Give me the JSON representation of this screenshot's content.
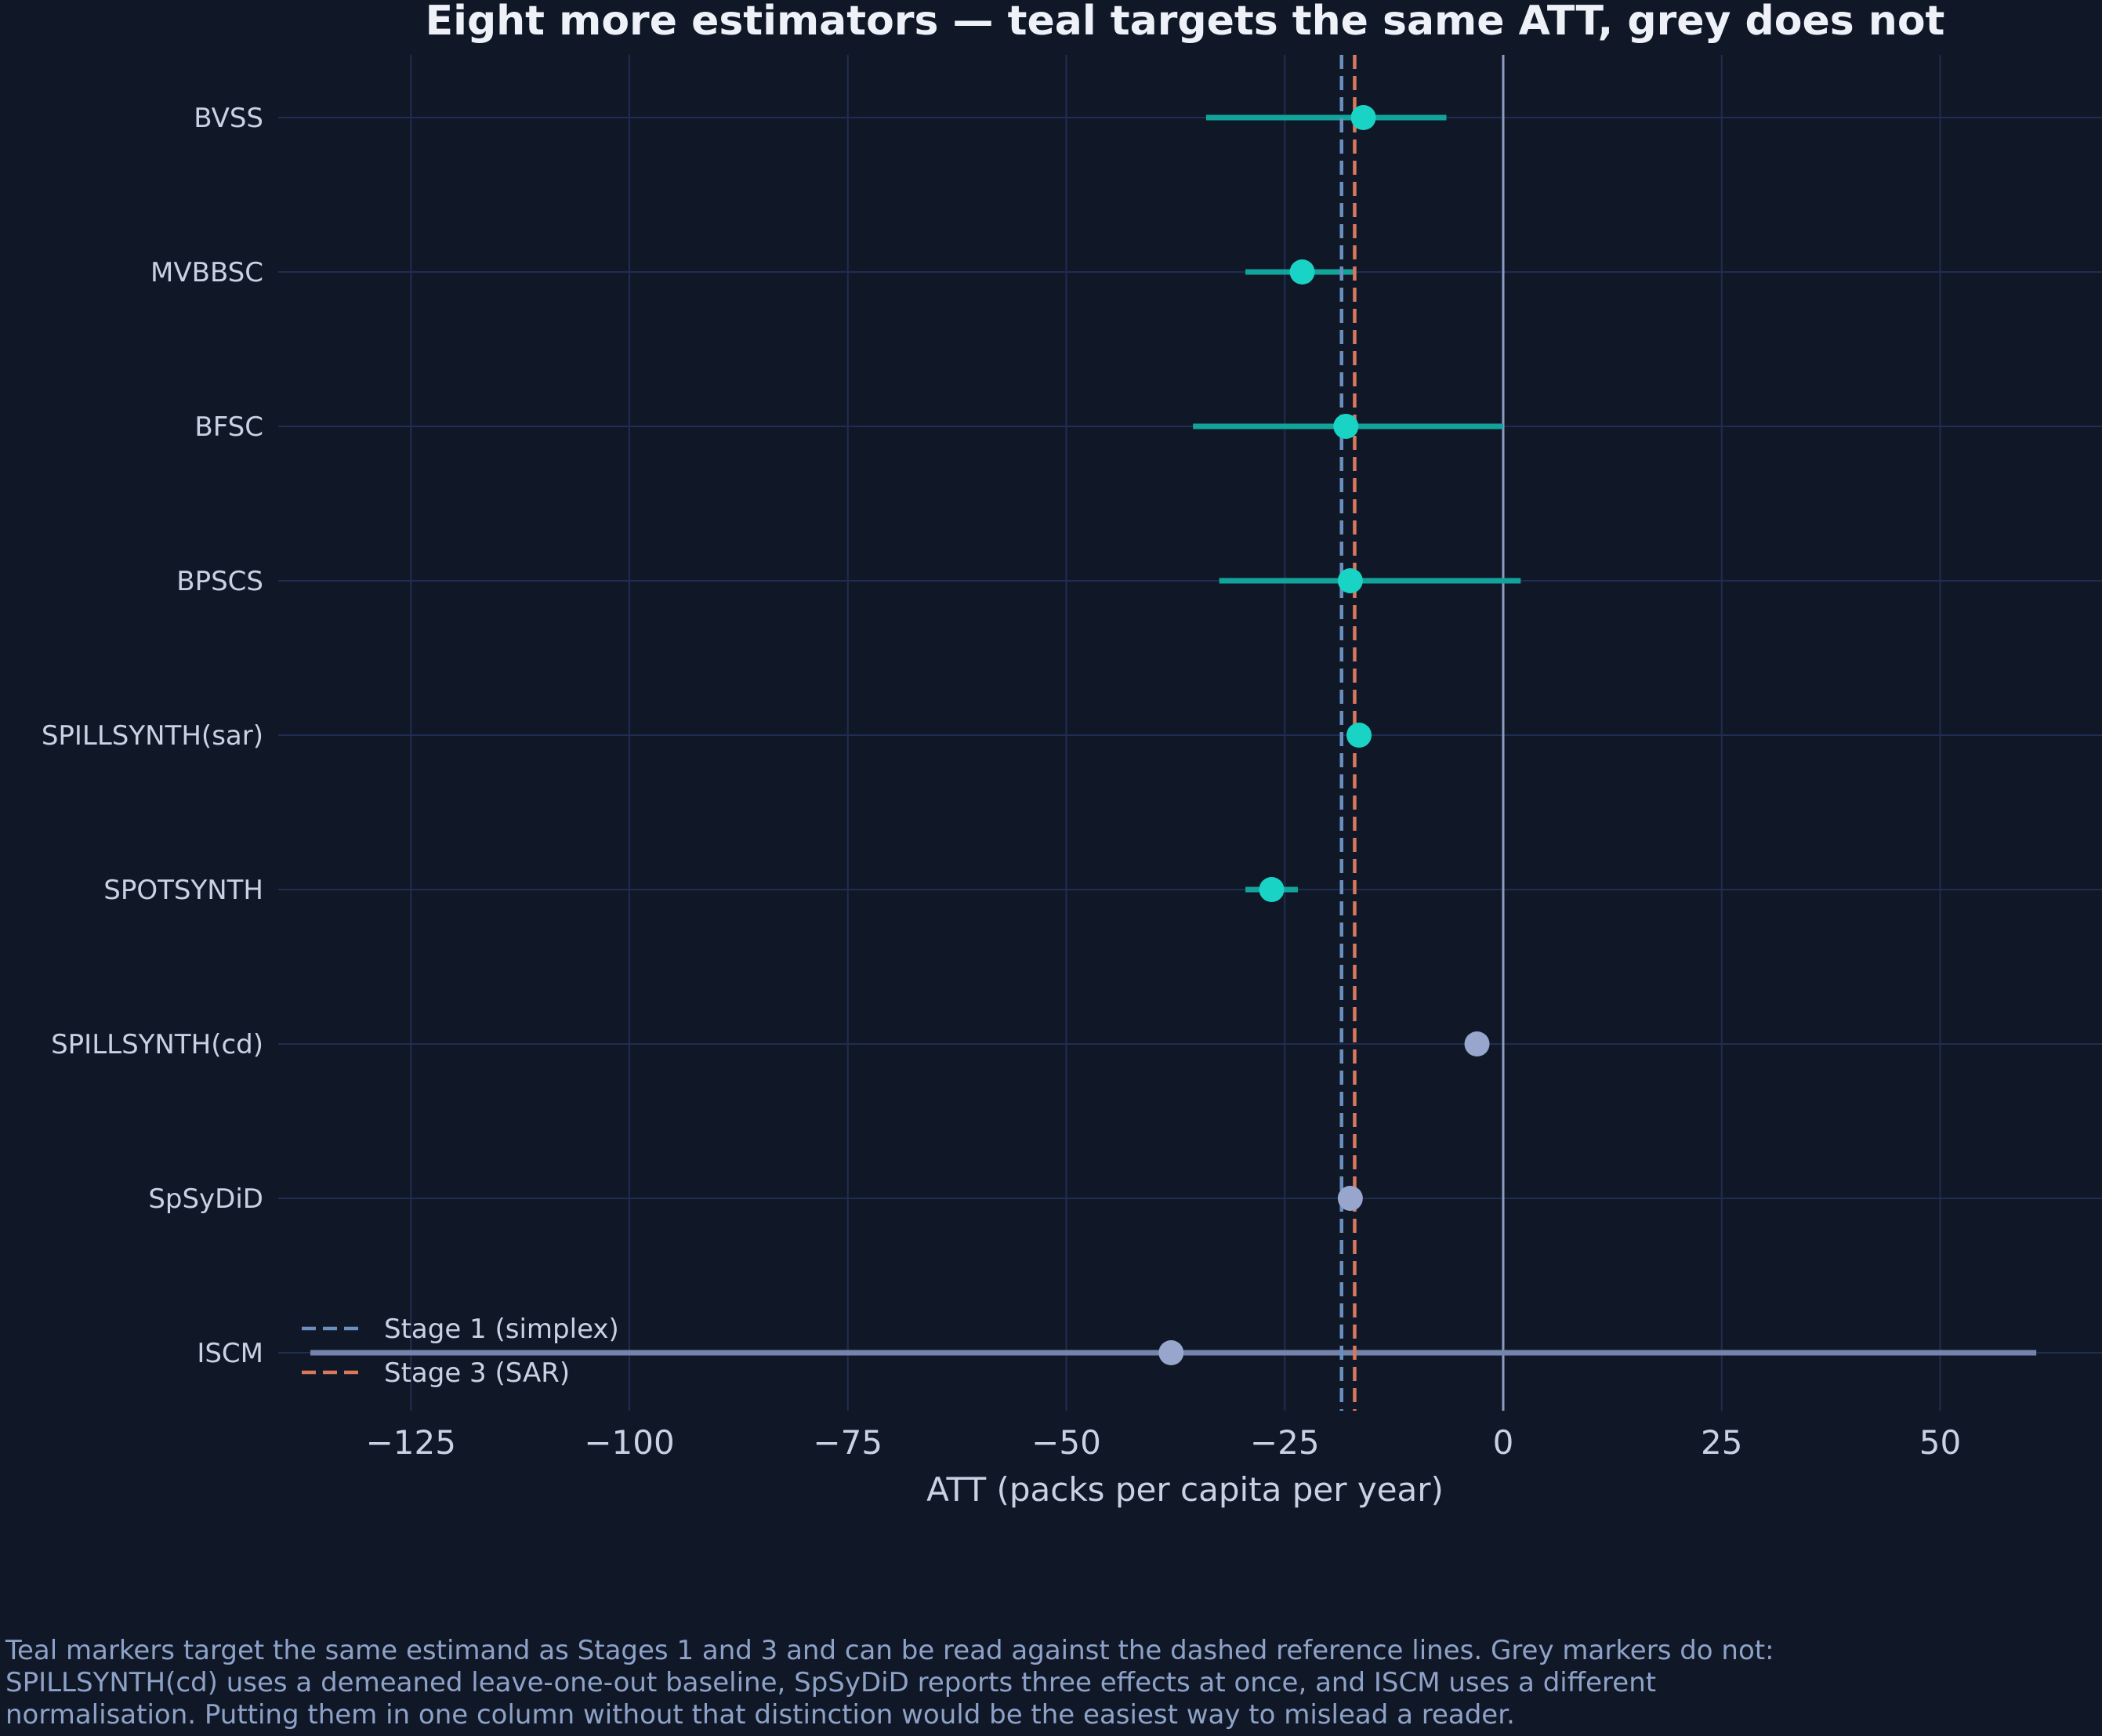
{
  "chart_data": {
    "type": "forest",
    "title": "Eight more estimators — teal targets the same ATT, grey does not",
    "xlabel": "ATT (packs per capita per year)",
    "ylabel": "",
    "xlim": [
      -145,
      70
    ],
    "xticks": [
      -125,
      -100,
      -75,
      -50,
      -25,
      0,
      25,
      50
    ],
    "xtick_labels": [
      "−125",
      "−100",
      "−75",
      "−50",
      "−25",
      "0",
      "25",
      "50"
    ],
    "grid": true,
    "zero_line": 0,
    "estimators": [
      {
        "label": "BVSS",
        "estimate": -16,
        "ci": [
          -34,
          -6.5
        ],
        "group": "teal"
      },
      {
        "label": "MVBBSC",
        "estimate": -23,
        "ci": [
          -29.5,
          -17
        ],
        "group": "teal"
      },
      {
        "label": "BFSC",
        "estimate": -18,
        "ci": [
          -35.5,
          0
        ],
        "group": "teal"
      },
      {
        "label": "BPSCS",
        "estimate": -17.5,
        "ci": [
          -32.5,
          2
        ],
        "group": "teal"
      },
      {
        "label": "SPILLSYNTH(sar)",
        "estimate": -16.5,
        "ci": null,
        "group": "teal"
      },
      {
        "label": "SPOTSYNTH",
        "estimate": -26.5,
        "ci": [
          -29.5,
          -23.5
        ],
        "group": "teal"
      },
      {
        "label": "SPILLSYNTH(cd)",
        "estimate": -3,
        "ci": null,
        "group": "grey"
      },
      {
        "label": "SpSyDiD",
        "estimate": -17.5,
        "ci": null,
        "group": "grey"
      },
      {
        "label": "ISCM",
        "estimate": -38,
        "ci": [
          -136.5,
          61
        ],
        "group": "grey"
      }
    ],
    "reference_lines": [
      {
        "name": "Stage 1 (simplex)",
        "value": -18.5,
        "color": "#6a8fc0",
        "style": "dashed"
      },
      {
        "name": "Stage 3 (SAR)",
        "value": -17,
        "color": "#d9785a",
        "style": "dashed"
      }
    ],
    "legend_position": "lower-left",
    "colors": {
      "background": "#101828",
      "grid": "#1f2d50",
      "text": "#c9d1e3",
      "title": "#eef2f8",
      "teal_marker": "#19d3c5",
      "teal_ci": "#12a39a",
      "grey_marker": "#98a5cc",
      "grey_ci": "#7584ab",
      "zero_line": "#8d9bc2",
      "caption": "#8ea2c8"
    }
  },
  "caption": {
    "lines": [
      "Teal markers target the same estimand as Stages 1 and 3 and can be read against the dashed reference lines. Grey markers do not:",
      "SPILLSYNTH(cd) uses a demeaned leave-one-out baseline, SpSyDiD reports three effects at once, and ISCM uses a different",
      "normalisation. Putting them in one column without that distinction would be the easiest way to mislead a reader."
    ]
  }
}
